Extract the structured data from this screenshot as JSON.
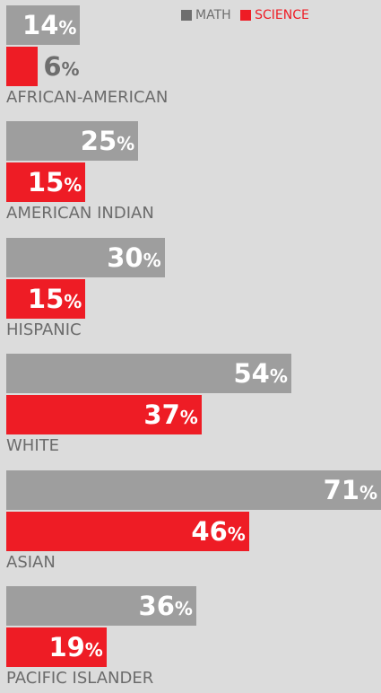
{
  "chart_data": {
    "type": "bar",
    "orientation": "horizontal",
    "xlim": [
      0,
      71
    ],
    "categories": [
      "AFRICAN-AMERICAN",
      "AMERICAN INDIAN",
      "HISPANIC",
      "WHITE",
      "ASIAN",
      "PACIFIC ISLANDER"
    ],
    "series": [
      {
        "name": "MATH",
        "color": "#9e9e9e",
        "values": [
          14,
          25,
          30,
          54,
          71,
          36
        ]
      },
      {
        "name": "SCIENCE",
        "color": "#ee1c25",
        "values": [
          6,
          15,
          15,
          37,
          46,
          19
        ]
      }
    ],
    "value_suffix": "%",
    "legend": {
      "placement": "top-right"
    }
  },
  "colors": {
    "background": "#dcdcdc",
    "math_legend": "#6e6e6e",
    "science_legend": "#ee1c25",
    "category_text": "#6b6b6b"
  }
}
